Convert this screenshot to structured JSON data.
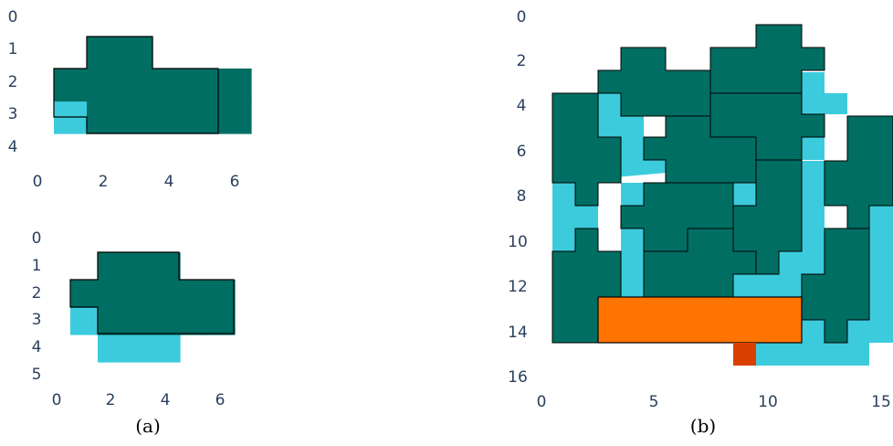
{
  "colors": {
    "piece": "#006e63",
    "cover": "#3ccbdc",
    "bar": "#ff7400",
    "bar_dark": "#d94000",
    "outline": "#000000",
    "tick": "#2a3f5f"
  },
  "panels": [
    {
      "id": "a-top",
      "x_ticks": [
        "0",
        "2",
        "4",
        "6"
      ],
      "y_ticks": [
        "0",
        "1",
        "2",
        "3",
        "4"
      ],
      "cells": {
        "cover": [
          [
            3,
            0
          ]
        ],
        "piece": [
          [
            1,
            1
          ],
          [
            1,
            2
          ],
          [
            2,
            0
          ],
          [
            2,
            1
          ],
          [
            2,
            2
          ],
          [
            2,
            3
          ],
          [
            2,
            4
          ],
          [
            2,
            5
          ],
          [
            3,
            1
          ],
          [
            3,
            2
          ],
          [
            3,
            3
          ],
          [
            3,
            4
          ],
          [
            3,
            5
          ]
        ]
      }
    },
    {
      "id": "a-bottom",
      "x_ticks": [
        "0",
        "2",
        "4",
        "6"
      ],
      "y_ticks": [
        "0",
        "1",
        "2",
        "3",
        "4",
        "5"
      ],
      "cells": {
        "cover": [
          [
            3,
            0
          ],
          [
            4,
            1
          ],
          [
            4,
            2
          ],
          [
            4,
            3
          ]
        ],
        "piece": [
          [
            1,
            1
          ],
          [
            1,
            2
          ],
          [
            1,
            3
          ],
          [
            2,
            0
          ],
          [
            2,
            1
          ],
          [
            2,
            2
          ],
          [
            2,
            3
          ],
          [
            2,
            4
          ],
          [
            2,
            5
          ],
          [
            3,
            1
          ],
          [
            3,
            2
          ],
          [
            3,
            3
          ],
          [
            3,
            4
          ],
          [
            3,
            5
          ]
        ]
      }
    },
    {
      "id": "b",
      "x_ticks": [
        "0",
        "5",
        "10",
        "15"
      ],
      "y_ticks": [
        "0",
        "2",
        "4",
        "6",
        "8",
        "10",
        "12",
        "14",
        "16"
      ],
      "bar": {
        "row_from": 12.5,
        "row_to": 14.5,
        "col_from": 2.5,
        "col_to": 11.5
      },
      "bar_dark_cell": [
        15,
        8.5
      ]
    }
  ],
  "captions": {
    "a": "(a)",
    "b": "(b)"
  }
}
